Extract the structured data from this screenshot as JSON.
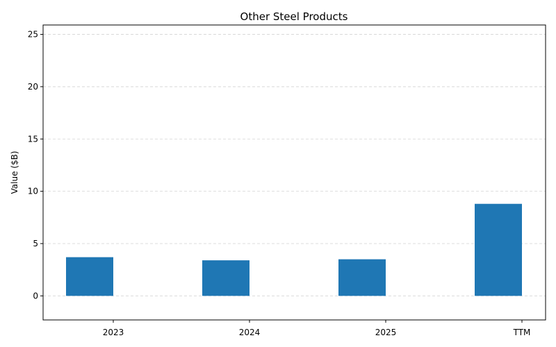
{
  "chart_data": {
    "type": "bar",
    "title": "Other Steel Products",
    "xlabel": "",
    "ylabel": "Value ($B)",
    "categories": [
      "2023",
      "2024",
      "2025",
      "TTM"
    ],
    "values": [
      3.7,
      3.4,
      3.5,
      8.8
    ],
    "ylim": [
      -2.3,
      25.9
    ],
    "yticks": [
      0,
      5,
      10,
      15,
      20,
      25
    ],
    "grid": "y",
    "bar_color": "#1f77b4"
  }
}
